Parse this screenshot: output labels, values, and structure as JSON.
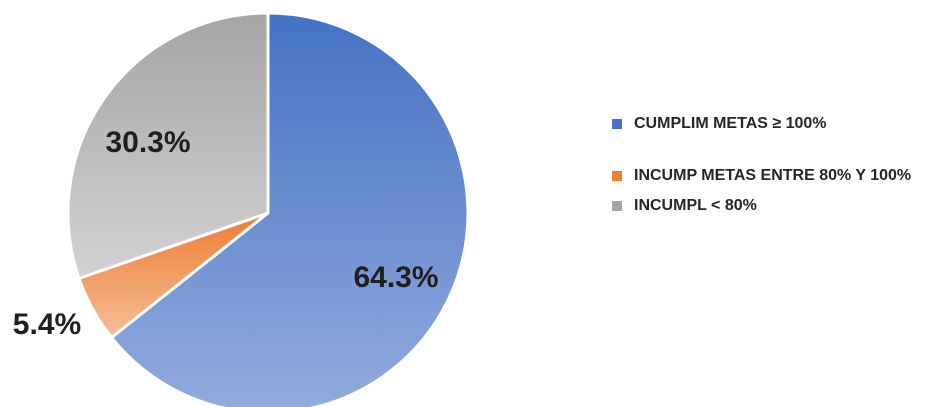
{
  "chart_data": {
    "type": "pie",
    "categories": [
      "CUMPLIM METAS ≥ 100%",
      "INCUMP METAS ENTRE 80% Y 100%",
      "INCUMPL < 80%"
    ],
    "values": [
      64.3,
      5.4,
      30.3
    ],
    "data_labels": [
      "64.3%",
      "5.4%",
      "30.3%"
    ],
    "colors": [
      "#4472C4",
      "#ED7D31",
      "#A5A5A5"
    ],
    "legend_position": "right",
    "start_angle": "12 o'clock, clockwise"
  },
  "legend": {
    "items": [
      {
        "label": "CUMPLIM METAS ≥ 100%"
      },
      {
        "label": "INCUMP METAS ENTRE 80% Y 100%"
      },
      {
        "label": "INCUMPL < 80%"
      }
    ]
  }
}
